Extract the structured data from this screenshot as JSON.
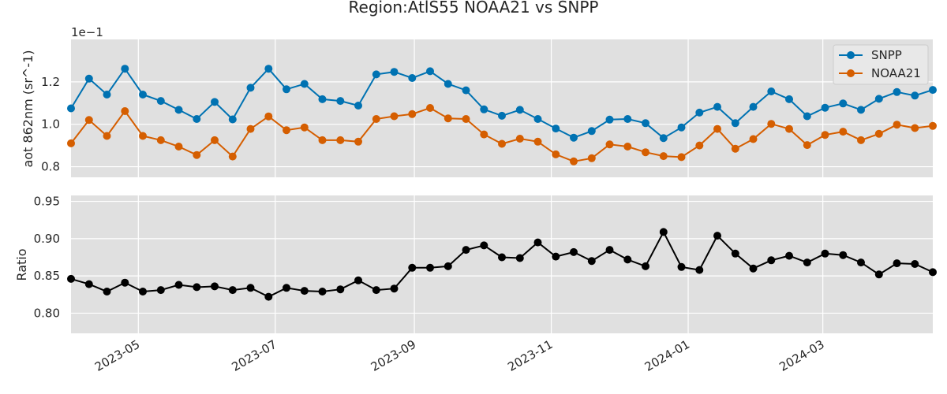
{
  "chart_data": {
    "type": "line",
    "title": "Region:AtlS55 NOAA21 vs SNPP",
    "x": [
      "2023-04-01",
      "2023-04-09",
      "2023-04-17",
      "2023-04-25",
      "2023-05-03",
      "2023-05-11",
      "2023-05-19",
      "2023-05-27",
      "2023-06-04",
      "2023-06-12",
      "2023-06-20",
      "2023-06-28",
      "2023-07-06",
      "2023-07-14",
      "2023-07-22",
      "2023-07-30",
      "2023-08-07",
      "2023-08-15",
      "2023-08-23",
      "2023-08-31",
      "2023-09-08",
      "2023-09-16",
      "2023-09-24",
      "2023-10-02",
      "2023-10-10",
      "2023-10-18",
      "2023-10-26",
      "2023-11-03",
      "2023-11-11",
      "2023-11-19",
      "2023-11-27",
      "2023-12-05",
      "2023-12-13",
      "2023-12-21",
      "2023-12-29",
      "2024-01-06",
      "2024-01-14",
      "2024-01-22",
      "2024-01-30",
      "2024-02-07",
      "2024-02-15",
      "2024-02-23",
      "2024-03-02",
      "2024-03-10",
      "2024-03-18",
      "2024-03-26",
      "2024-04-03",
      "2024-04-11",
      "2024-04-19"
    ],
    "xticks": [
      "2023-05",
      "2023-07",
      "2023-09",
      "2023-11",
      "2024-01",
      "2024-03"
    ],
    "xlim": [
      "2023-04-01",
      "2024-04-19"
    ],
    "top": {
      "ylabel": "aot 862nm (sr^-1)",
      "offset_text": "1e−1",
      "ylim": [
        0.75,
        1.4
      ],
      "yticks": [
        "0.8",
        "1.0",
        "1.2"
      ],
      "legend_position": "top-right",
      "series": [
        {
          "name": "SNPP",
          "color": "#0072B2",
          "values": [
            1.075,
            1.215,
            1.14,
            1.262,
            1.14,
            1.11,
            1.068,
            1.025,
            1.105,
            1.023,
            1.172,
            1.262,
            1.165,
            1.19,
            1.118,
            1.11,
            1.088,
            1.235,
            1.247,
            1.218,
            1.25,
            1.19,
            1.16,
            1.07,
            1.04,
            1.068,
            1.025,
            0.98,
            0.937,
            0.968,
            1.022,
            1.025,
            1.005,
            0.935,
            0.985,
            1.055,
            1.082,
            1.005,
            1.082,
            1.155,
            1.118,
            1.038,
            1.078,
            1.098,
            1.068,
            1.12,
            1.152,
            1.135,
            1.162
          ]
        },
        {
          "name": "NOAA21",
          "color": "#D55E00",
          "values": [
            0.91,
            1.02,
            0.945,
            1.062,
            0.945,
            0.925,
            0.895,
            0.855,
            0.925,
            0.848,
            0.978,
            1.037,
            0.972,
            0.985,
            0.925,
            0.925,
            0.918,
            1.025,
            1.038,
            1.048,
            1.077,
            1.028,
            1.025,
            0.952,
            0.908,
            0.932,
            0.918,
            0.858,
            0.825,
            0.84,
            0.905,
            0.895,
            0.868,
            0.85,
            0.845,
            0.9,
            0.978,
            0.885,
            0.93,
            1.002,
            0.978,
            0.902,
            0.95,
            0.965,
            0.925,
            0.955,
            0.998,
            0.982,
            0.992
          ]
        }
      ]
    },
    "bottom": {
      "ylabel": "Ratio",
      "ylim": [
        0.773,
        0.958
      ],
      "yticks": [
        "0.80",
        "0.85",
        "0.90",
        "0.95"
      ],
      "series": [
        {
          "name": "",
          "color": "#000000",
          "values": [
            0.846,
            0.839,
            0.829,
            0.841,
            0.829,
            0.831,
            0.838,
            0.835,
            0.836,
            0.831,
            0.834,
            0.822,
            0.834,
            0.83,
            0.829,
            0.832,
            0.844,
            0.831,
            0.833,
            0.861,
            0.861,
            0.863,
            0.885,
            0.891,
            0.875,
            0.874,
            0.895,
            0.876,
            0.882,
            0.87,
            0.885,
            0.872,
            0.863,
            0.909,
            0.862,
            0.858,
            0.904,
            0.88,
            0.86,
            0.871,
            0.877,
            0.868,
            0.88,
            0.878,
            0.868,
            0.852,
            0.867,
            0.866,
            0.855
          ]
        }
      ]
    },
    "grid": true
  }
}
